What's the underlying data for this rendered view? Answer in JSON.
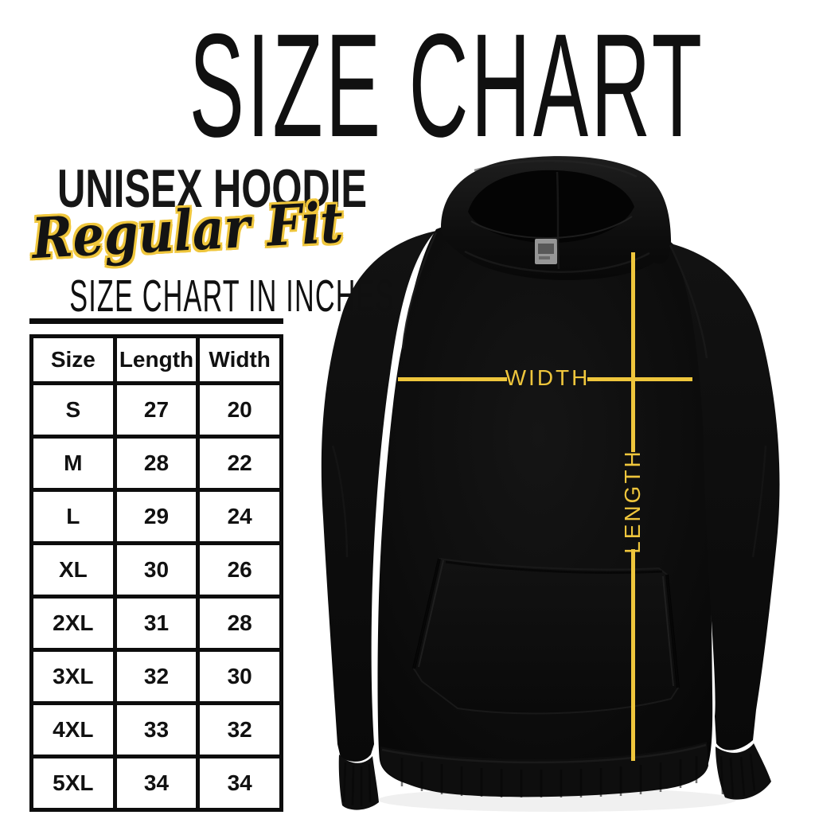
{
  "title": "SIZE CHART",
  "product": {
    "heading": "UNISEX HOODIE",
    "fit": "Regular Fit"
  },
  "table_section": {
    "heading": "SIZE CHART IN INCHES"
  },
  "size_table": {
    "columns": [
      "Size",
      "Length",
      "Width"
    ],
    "rows": [
      [
        "S",
        "27",
        "20"
      ],
      [
        "M",
        "28",
        "22"
      ],
      [
        "L",
        "29",
        "24"
      ],
      [
        "XL",
        "30",
        "26"
      ],
      [
        "2XL",
        "31",
        "28"
      ],
      [
        "3XL",
        "32",
        "30"
      ],
      [
        "4XL",
        "33",
        "32"
      ],
      [
        "5XL",
        "34",
        "34"
      ]
    ]
  },
  "measurement_diagram": {
    "garment": "black unisex hoodie, front view",
    "width_label": "WIDTH",
    "length_label": "LENGTH"
  },
  "colors": {
    "accent_gold": "#EFC63C",
    "text_black": "#111111",
    "hoodie_black": "#0b0b0b",
    "background": "#ffffff"
  },
  "chart_data": {
    "type": "table",
    "title": "SIZE CHART IN INCHES",
    "columns": [
      "Size",
      "Length",
      "Width"
    ],
    "rows": [
      [
        "S",
        27,
        20
      ],
      [
        "M",
        28,
        22
      ],
      [
        "L",
        29,
        24
      ],
      [
        "XL",
        30,
        26
      ],
      [
        "2XL",
        31,
        28
      ],
      [
        "3XL",
        32,
        30
      ],
      [
        "4XL",
        33,
        32
      ],
      [
        "5XL",
        34,
        34
      ]
    ],
    "units": "inches"
  }
}
